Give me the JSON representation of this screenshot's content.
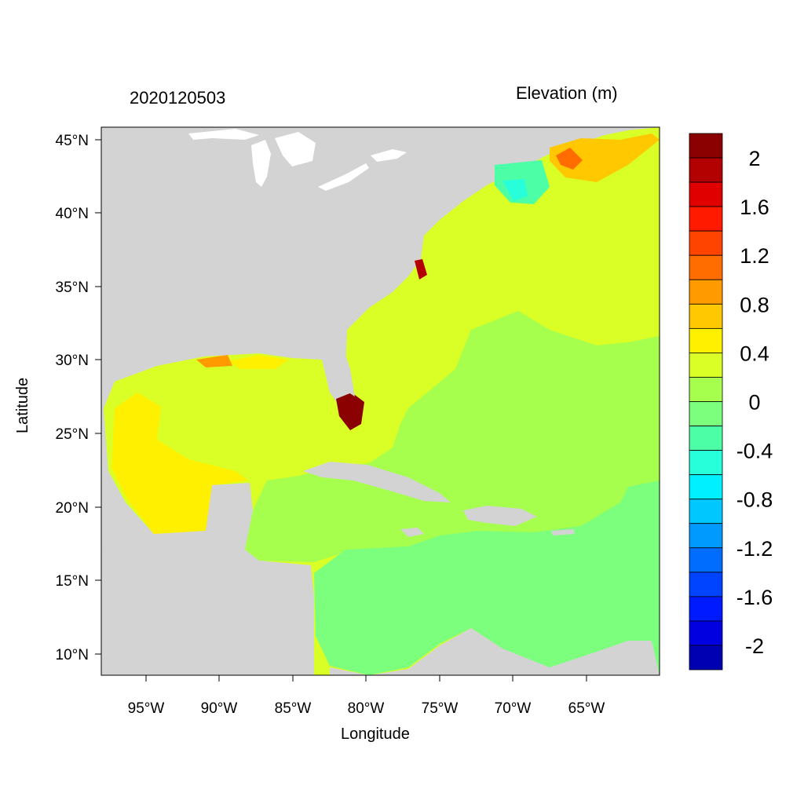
{
  "map": {
    "title": "2020120503",
    "subtitle": "Elevation (m)",
    "xlabel": "Longitude",
    "ylabel": "Latitude",
    "lon_ticks": [
      "95°W",
      "90°W",
      "85°W",
      "80°W",
      "75°W",
      "70°W",
      "65°W"
    ],
    "lat_ticks": [
      "45°N",
      "40°N",
      "35°N",
      "30°N",
      "25°N",
      "20°N",
      "15°N",
      "10°N"
    ],
    "land_color": "#d3d3d3",
    "colorbar": {
      "labels": [
        "2",
        "1.6",
        "1.2",
        "0.8",
        "0.4",
        "0",
        "-0.4",
        "-0.8",
        "-1.2",
        "-1.6",
        "-2"
      ],
      "colors": [
        "#8b0000",
        "#b30000",
        "#e00000",
        "#ff1a00",
        "#ff4400",
        "#ff6d00",
        "#ff9a00",
        "#ffc800",
        "#fff000",
        "#d9ff26",
        "#a6ff4c",
        "#7cff7c",
        "#4cffa6",
        "#26ffd9",
        "#00f0ff",
        "#00c8ff",
        "#009aff",
        "#006dff",
        "#0044ff",
        "#001aff",
        "#0000e0",
        "#0000b3"
      ]
    }
  }
}
